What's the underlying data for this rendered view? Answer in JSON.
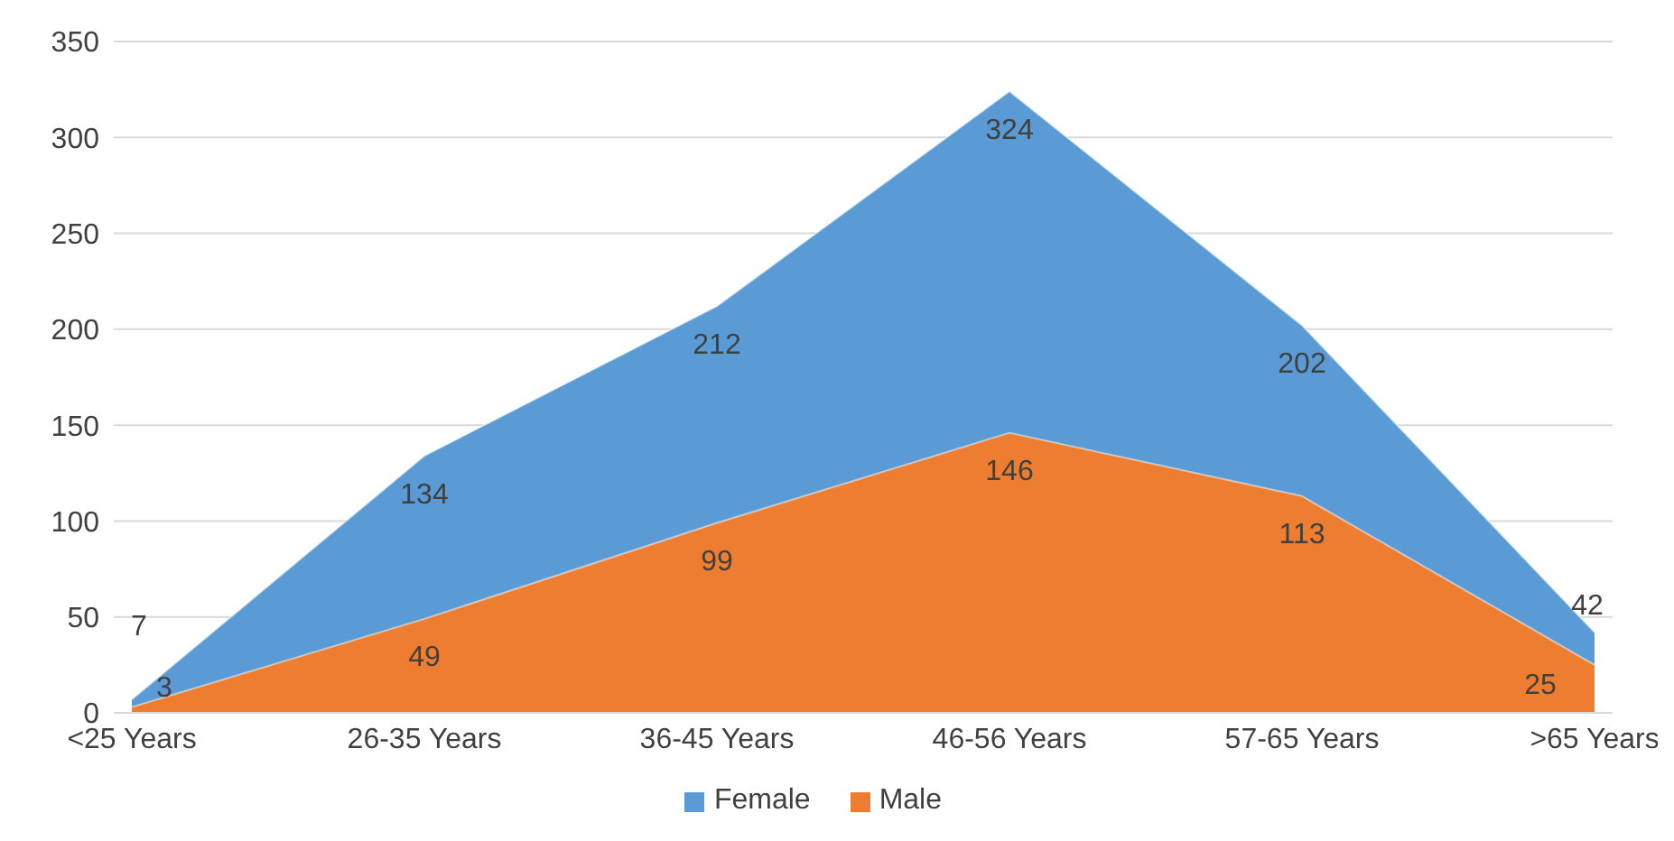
{
  "chart_data": {
    "type": "area",
    "categories": [
      "<25 Years",
      "26-35 Years",
      "36-45 Years",
      "46-56 Years",
      "57-65 Years",
      ">65 Years"
    ],
    "series": [
      {
        "name": "Female",
        "color": "#5b9bd5",
        "values": [
          7,
          134,
          212,
          324,
          202,
          42
        ]
      },
      {
        "name": "Male",
        "color": "#ed7d31",
        "values": [
          3,
          49,
          99,
          146,
          113,
          25
        ]
      }
    ],
    "ylim": [
      0,
      350
    ],
    "yticks": [
      0,
      50,
      100,
      150,
      200,
      250,
      300,
      350
    ],
    "grid": "y",
    "legend": "bottom",
    "data_labels": true
  }
}
